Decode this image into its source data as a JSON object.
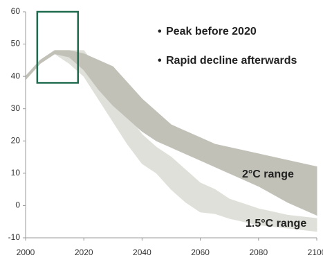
{
  "chart_data": {
    "type": "area-band",
    "annotations": [
      "Peak before 2020",
      "Rapid decline afterwards"
    ],
    "x": [
      2000,
      2005,
      2010,
      2015,
      2020,
      2025,
      2030,
      2035,
      2040,
      2045,
      2050,
      2055,
      2060,
      2065,
      2070,
      2080,
      2090,
      2100
    ],
    "series": [
      {
        "name": "1.5°C range",
        "color": "#e0e0da",
        "upper": [
          40,
          45,
          48,
          48,
          48,
          42,
          35,
          28,
          22,
          18,
          15,
          11,
          7,
          5,
          2,
          -1,
          -3,
          -4
        ],
        "lower": [
          39,
          44,
          47,
          44,
          40,
          33,
          26,
          19,
          13,
          10,
          5,
          1,
          -2,
          -2.5,
          -4,
          -6,
          -7,
          -8
        ]
      },
      {
        "name": "2°C range",
        "color": "#c2c1b8",
        "upper": [
          40,
          45,
          48,
          48,
          47,
          45,
          43,
          38,
          33,
          29,
          25,
          23,
          21,
          19,
          18,
          16,
          14,
          12
        ],
        "lower": [
          39,
          44,
          47,
          46,
          42,
          36,
          31,
          27,
          23,
          20,
          18,
          16,
          14,
          12,
          10,
          6,
          1,
          -3
        ]
      }
    ],
    "highlight": {
      "x": [
        2004,
        2018
      ],
      "y": [
        38,
        60
      ],
      "color": "#1e6b4f"
    },
    "xlim": [
      2000,
      2100
    ],
    "xticks": [
      2000,
      2020,
      2040,
      2060,
      2080,
      2100
    ],
    "ylim": [
      -10,
      60
    ],
    "yticks": [
      -10,
      0,
      10,
      20,
      30,
      40,
      50,
      60
    ],
    "grid": false
  }
}
